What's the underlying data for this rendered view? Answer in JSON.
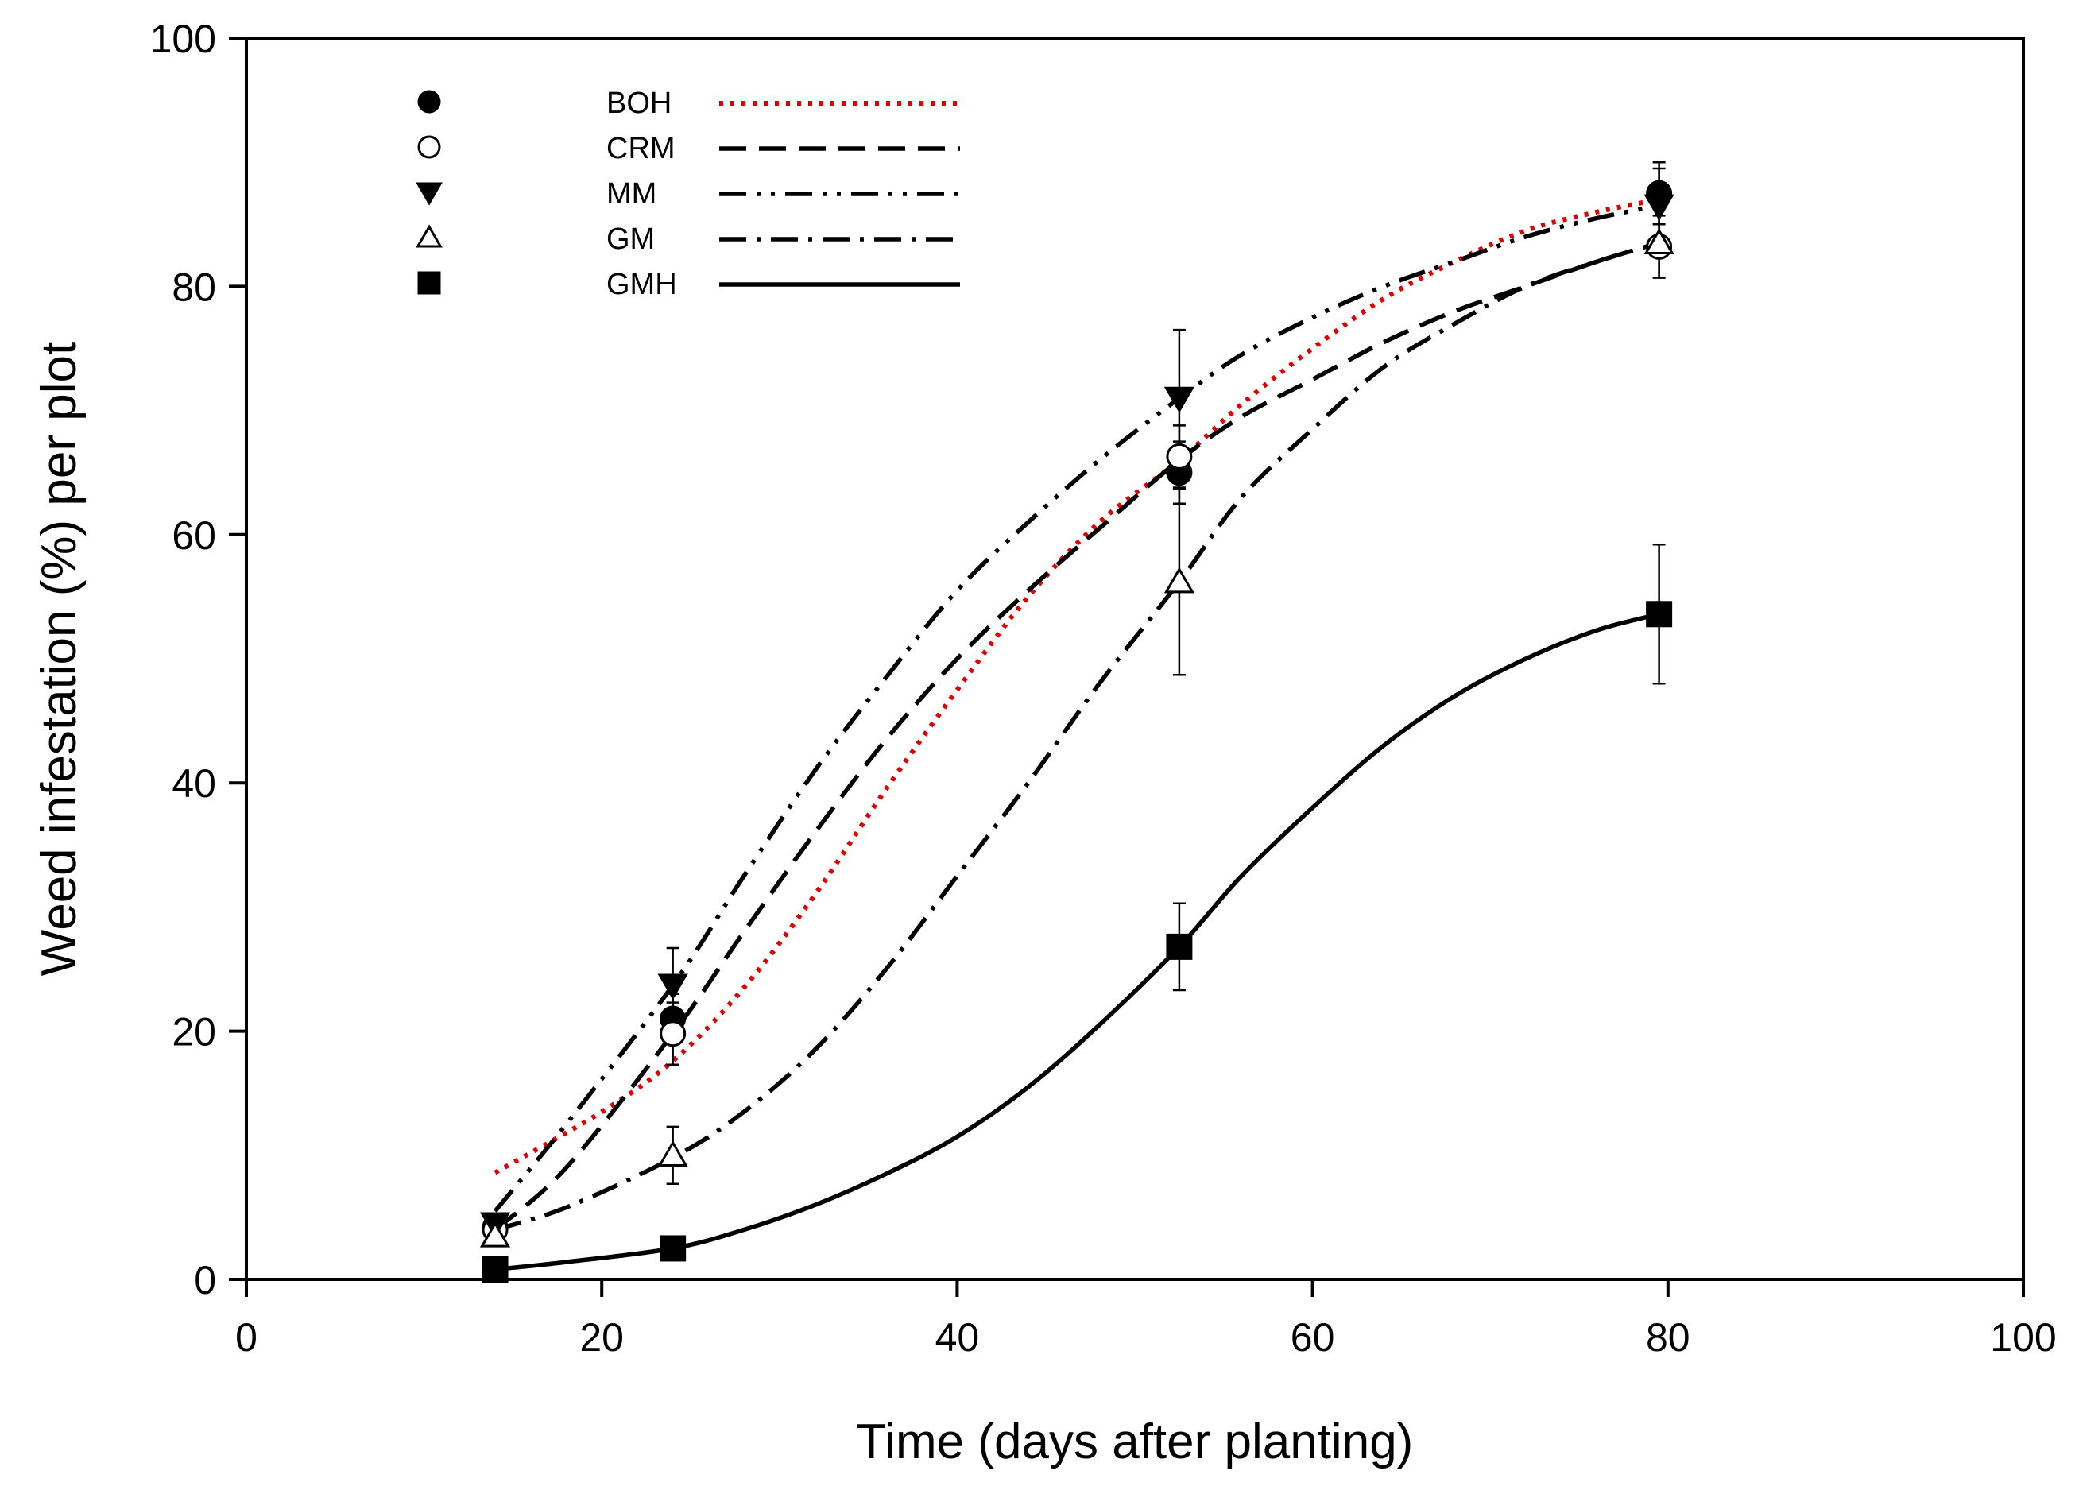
{
  "chart_data": {
    "type": "scatter",
    "title": "",
    "xlabel": "Time (days after planting)",
    "ylabel": "Weed infestation (%) per plot",
    "xlim": [
      0,
      100
    ],
    "ylim": [
      0,
      100
    ],
    "xticks": [
      0,
      20,
      40,
      60,
      80,
      100
    ],
    "yticks": [
      0,
      20,
      40,
      60,
      80,
      100
    ],
    "grid": false,
    "legend_position": "top-left",
    "series": [
      {
        "name": "BOH",
        "marker": "filled-circle",
        "line_style": "dotted",
        "color": "#e00000",
        "marker_color": "#000000",
        "points": [
          {
            "x": 14,
            "y": 4.2,
            "err": 0.8
          },
          {
            "x": 24,
            "y": 21.0,
            "err": 2.0
          },
          {
            "x": 52.5,
            "y": 65.0,
            "err": 2.5
          },
          {
            "x": 79.5,
            "y": 87.5,
            "err": 2.5
          }
        ],
        "fit": [
          [
            14,
            8.6
          ],
          [
            20,
            13.5
          ],
          [
            24,
            17.6
          ],
          [
            28,
            23.5
          ],
          [
            32,
            31.0
          ],
          [
            36,
            39.5
          ],
          [
            40,
            47.5
          ],
          [
            44,
            55.0
          ],
          [
            48,
            61.0
          ],
          [
            52.5,
            66.0
          ],
          [
            56,
            70.5
          ],
          [
            60,
            75.0
          ],
          [
            64,
            79.0
          ],
          [
            68,
            82.0
          ],
          [
            72,
            84.5
          ],
          [
            76,
            86.0
          ],
          [
            79.5,
            87.0
          ]
        ]
      },
      {
        "name": "CRM",
        "marker": "open-circle",
        "line_style": "dashed",
        "color": "#000000",
        "marker_color": "#000000",
        "points": [
          {
            "x": 14,
            "y": 4.0,
            "err": 0.8
          },
          {
            "x": 24,
            "y": 19.8,
            "err": 2.5
          },
          {
            "x": 52.5,
            "y": 66.3,
            "err": 2.5
          },
          {
            "x": 79.5,
            "y": 83.2,
            "err": 2.5
          }
        ],
        "fit": [
          [
            14,
            4.0
          ],
          [
            18,
            9.0
          ],
          [
            24,
            19.8
          ],
          [
            28,
            28.0
          ],
          [
            32,
            36.0
          ],
          [
            36,
            43.5
          ],
          [
            40,
            50.0
          ],
          [
            44,
            55.5
          ],
          [
            48,
            60.5
          ],
          [
            52.5,
            66.0
          ],
          [
            56,
            69.5
          ],
          [
            60,
            72.5
          ],
          [
            64,
            75.5
          ],
          [
            68,
            78.0
          ],
          [
            72,
            80.0
          ],
          [
            76,
            82.0
          ],
          [
            79.5,
            83.5
          ]
        ]
      },
      {
        "name": "MM",
        "marker": "filled-triangle-down",
        "line_style": "dash-dot-dot",
        "color": "#000000",
        "marker_color": "#000000",
        "points": [
          {
            "x": 14,
            "y": 4.5,
            "err": 0.8
          },
          {
            "x": 24,
            "y": 23.7,
            "err": 3.0
          },
          {
            "x": 52.5,
            "y": 71.0,
            "err": 5.5
          },
          {
            "x": 79.5,
            "y": 86.5,
            "err": 3.0
          }
        ],
        "fit": [
          [
            14,
            5.5
          ],
          [
            18,
            12.5
          ],
          [
            24,
            23.7
          ],
          [
            28,
            32.5
          ],
          [
            32,
            41.0
          ],
          [
            36,
            48.5
          ],
          [
            40,
            55.5
          ],
          [
            44,
            61.0
          ],
          [
            48,
            66.0
          ],
          [
            52.5,
            71.0
          ],
          [
            56,
            74.5
          ],
          [
            60,
            77.5
          ],
          [
            64,
            80.0
          ],
          [
            68,
            82.0
          ],
          [
            72,
            84.0
          ],
          [
            76,
            85.5
          ],
          [
            79.5,
            86.5
          ]
        ]
      },
      {
        "name": "GM",
        "marker": "open-triangle-up",
        "line_style": "dash-dot",
        "color": "#000000",
        "marker_color": "#000000",
        "points": [
          {
            "x": 14,
            "y": 3.5,
            "err": 0.8
          },
          {
            "x": 24,
            "y": 10.0,
            "err": 2.3
          },
          {
            "x": 52.5,
            "y": 56.2,
            "err": 7.5
          },
          {
            "x": 79.5,
            "y": 83.5,
            "err": 2.8
          }
        ],
        "fit": [
          [
            14,
            4.0
          ],
          [
            18,
            5.8
          ],
          [
            24,
            9.8
          ],
          [
            28,
            13.5
          ],
          [
            32,
            18.5
          ],
          [
            36,
            25.0
          ],
          [
            40,
            32.5
          ],
          [
            44,
            40.0
          ],
          [
            48,
            48.0
          ],
          [
            52.5,
            56.2
          ],
          [
            56,
            63.0
          ],
          [
            60,
            68.5
          ],
          [
            64,
            73.5
          ],
          [
            68,
            77.0
          ],
          [
            72,
            80.0
          ],
          [
            76,
            82.0
          ],
          [
            79.5,
            83.5
          ]
        ]
      },
      {
        "name": "GMH",
        "marker": "filled-square",
        "line_style": "solid",
        "color": "#000000",
        "marker_color": "#000000",
        "points": [
          {
            "x": 14,
            "y": 0.8,
            "err": 0.4
          },
          {
            "x": 24,
            "y": 2.5,
            "err": 0.5
          },
          {
            "x": 52.5,
            "y": 26.8,
            "err": 3.5
          },
          {
            "x": 79.5,
            "y": 53.6,
            "err": 5.6
          }
        ],
        "fit": [
          [
            14,
            0.8
          ],
          [
            18,
            1.4
          ],
          [
            24,
            2.5
          ],
          [
            28,
            4.0
          ],
          [
            32,
            6.0
          ],
          [
            36,
            8.5
          ],
          [
            40,
            11.5
          ],
          [
            44,
            15.5
          ],
          [
            48,
            20.5
          ],
          [
            52.5,
            26.8
          ],
          [
            56,
            32.5
          ],
          [
            60,
            38.0
          ],
          [
            64,
            43.0
          ],
          [
            68,
            47.0
          ],
          [
            72,
            50.0
          ],
          [
            76,
            52.3
          ],
          [
            79.5,
            53.6
          ]
        ]
      }
    ]
  }
}
